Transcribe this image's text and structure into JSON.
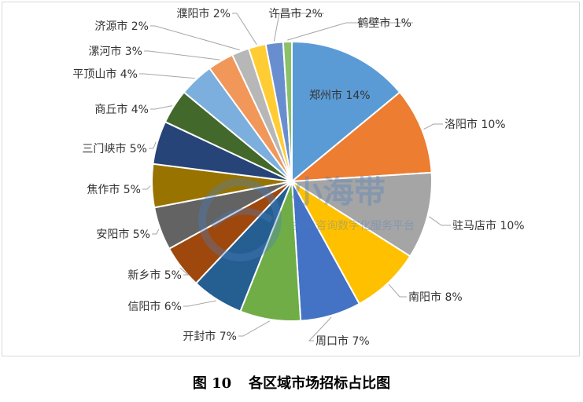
{
  "caption": {
    "figure_number": "图 10",
    "title": "各区域市场招标占比图"
  },
  "watermark": {
    "name": "小海带",
    "slogan": "招标咨询数字化服务平台"
  },
  "colors": {
    "background": "#ffffff",
    "border": "#d9d9d9",
    "leader": "#a6a6a6",
    "label": "#333333"
  },
  "chart_data": {
    "type": "pie",
    "title": "",
    "categories": [
      "郑州市",
      "洛阳市",
      "驻马店市",
      "南阳市",
      "周口市",
      "开封市",
      "信阳市",
      "新乡市",
      "安阳市",
      "焦作市",
      "三门峡市",
      "商丘市",
      "平顶山市",
      "漯河市",
      "济源市",
      "濮阳市",
      "许昌市",
      "鹤壁市"
    ],
    "labels": [
      "郑州市 14%",
      "洛阳市 10%",
      "驻马店市 10%",
      "南阳市 8%",
      "周口市 7%",
      "开封市 7%",
      "信阳市 6%",
      "新乡市 5%",
      "安阳市 5%",
      "焦作市 5%",
      "三门峡市 5%",
      "商丘市 4%",
      "平顶山市 4%",
      "漯河市 3%",
      "济源市 2%",
      "濮阳市 2%",
      "许昌市 2%",
      "鹤壁市 1%"
    ],
    "values": [
      14,
      10,
      10,
      8,
      7,
      7,
      6,
      5,
      5,
      5,
      5,
      4,
      4,
      3,
      2,
      2,
      2,
      1
    ],
    "colors": [
      "#5b9bd5",
      "#ed7d31",
      "#a5a5a5",
      "#ffc000",
      "#4472c4",
      "#70ad47",
      "#255e91",
      "#9e480e",
      "#636363",
      "#997300",
      "#264478",
      "#43682b",
      "#7cafdd",
      "#f1975a",
      "#b7b7b7",
      "#ffcd33",
      "#698ed0",
      "#8cc168"
    ],
    "legend": "none"
  }
}
